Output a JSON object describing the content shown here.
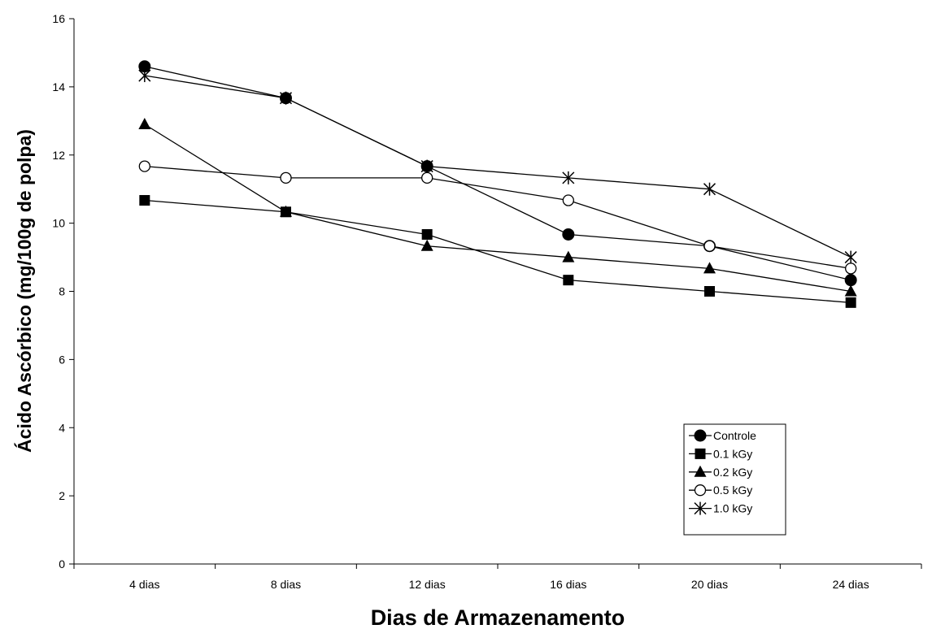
{
  "chart_data": {
    "type": "line",
    "title": "",
    "xlabel": "Dias de Armazenamento",
    "ylabel": "Ácido Ascórbico (mg/100g de polpa)",
    "categories": [
      "4 dias",
      "8 dias",
      "12 dias",
      "16 dias",
      "20 dias",
      "24 dias"
    ],
    "ylim": [
      0,
      16
    ],
    "yticks": [
      "0",
      "2",
      "4",
      "6",
      "8",
      "10",
      "12",
      "14",
      "16"
    ],
    "grid": false,
    "legend_position": "bottom-right",
    "series": [
      {
        "name": "Controle",
        "marker": "filled-circle",
        "values": [
          14.6,
          13.67,
          11.67,
          9.67,
          9.33,
          8.33
        ]
      },
      {
        "name": "0.1 kGy",
        "marker": "filled-square",
        "values": [
          10.67,
          10.33,
          9.67,
          8.33,
          8.0,
          7.67
        ]
      },
      {
        "name": "0.2 kGy",
        "marker": "filled-triangle",
        "values": [
          12.9,
          10.33,
          9.33,
          9.0,
          8.67,
          8.0
        ]
      },
      {
        "name": "0.5 kGy",
        "marker": "open-circle",
        "values": [
          11.67,
          11.33,
          11.33,
          10.67,
          9.33,
          8.67
        ]
      },
      {
        "name": "1.0 kGy",
        "marker": "asterisk",
        "values": [
          14.33,
          13.67,
          11.67,
          11.33,
          11.0,
          9.0
        ]
      }
    ]
  }
}
